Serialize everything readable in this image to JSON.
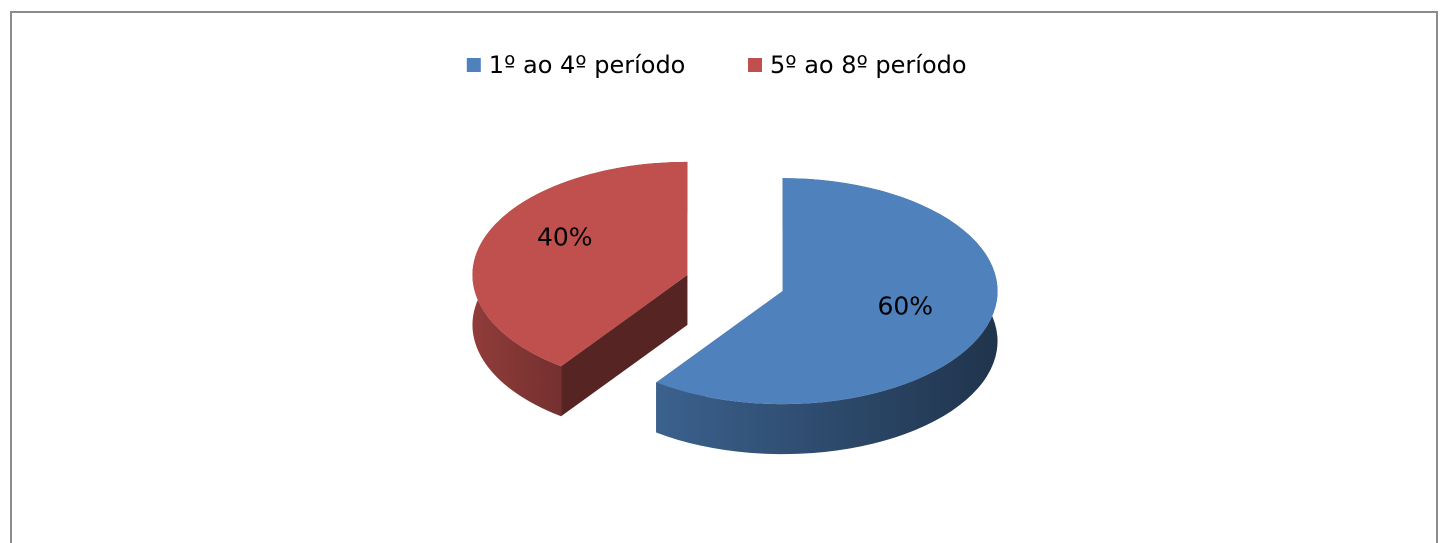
{
  "chart_data": {
    "type": "pie",
    "categories": [
      "1º ao 4º período",
      "5º ao 8º período"
    ],
    "values": [
      60,
      40
    ],
    "value_labels": [
      "60%",
      "40%"
    ],
    "colors": [
      "#4f81bd",
      "#c0504d"
    ],
    "legend": "top"
  }
}
